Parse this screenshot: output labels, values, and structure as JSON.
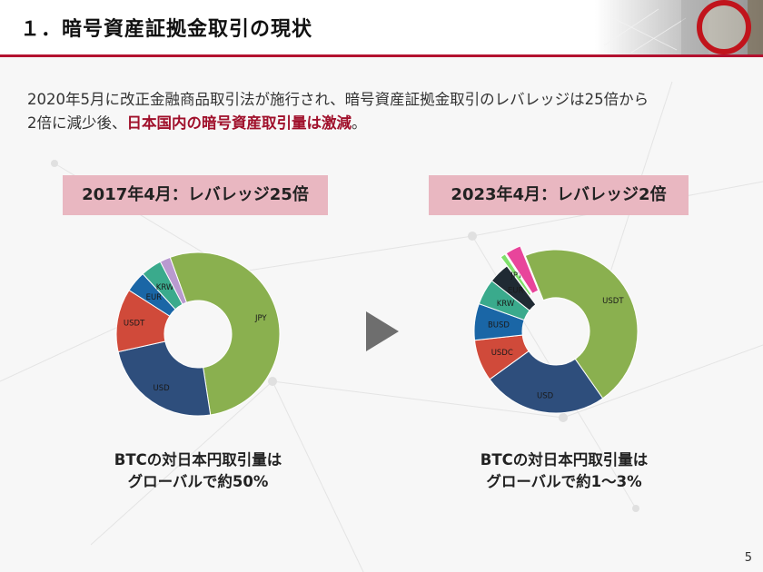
{
  "title": "１．暗号資産証拠金取引の現状",
  "intro": {
    "line1": "2020年5月に改正金融商品取引法が施行され、暗号資産証拠金取引のレバレッジは25倍から",
    "line2_prefix": "2倍に減少後、",
    "line2_highlight": "日本国内の暗号資産取引量は激減",
    "line2_suffix": "。"
  },
  "label_left": "2017年4月：レバレッジ25倍",
  "label_right": "2023年4月：レバレッジ2倍",
  "caption_left": {
    "line1": "BTCの対日本円取引量は",
    "line2": "グローバルで約50%"
  },
  "caption_right": {
    "line1": "BTCの対日本円取引量は",
    "line2": "グローバルで約1～3%"
  },
  "page_number": "5",
  "colors": {
    "accent": "#b3112f",
    "label_bg": "#e9b7c1",
    "highlight": "#a0102b"
  },
  "chart_data": [
    {
      "type": "pie",
      "title": "",
      "donut": true,
      "categories": [
        "JPY",
        "USD",
        "USDT",
        "EUR",
        "KRW",
        ""
      ],
      "values": [
        51,
        23,
        12,
        4,
        4,
        2
      ],
      "colors": [
        "#8ab04f",
        "#2e4e7c",
        "#d04a3a",
        "#1a66a6",
        "#3aaa8c",
        "#b99ad0"
      ]
    },
    {
      "type": "pie",
      "title": "",
      "donut": true,
      "categories": [
        "USDT",
        "USD",
        "USDC",
        "BUSD",
        "KRW",
        "EUR",
        "JPY",
        ""
      ],
      "values": [
        45,
        24,
        8,
        7,
        5,
        4,
        1,
        3
      ],
      "colors": [
        "#8ab04f",
        "#2e4e7c",
        "#d04a3a",
        "#1a66a6",
        "#3aaa8c",
        "#1f2a33",
        "#7fe06a",
        "#e8459b"
      ],
      "exploded": [
        false,
        false,
        false,
        false,
        false,
        false,
        true,
        true
      ]
    }
  ]
}
